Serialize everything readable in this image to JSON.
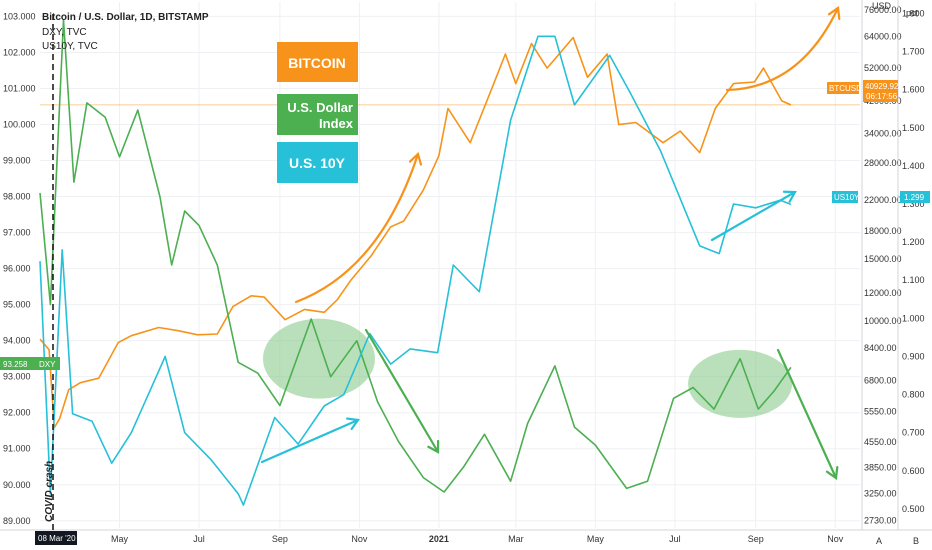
{
  "header": {
    "line1": "Bitcoin / U.S. Dollar, 1D, BITSTAMP",
    "line2": "DXY, TVC",
    "line3": "US10Y, TVC"
  },
  "colors": {
    "btc": "#f7931a",
    "dxy": "#4caf50",
    "us10y": "#26c0d8",
    "ellipse": "#81c784",
    "grid": "#eef0f3"
  },
  "legend": {
    "bitcoin": "BITCOIN",
    "dxy_line1": "U.S. Dollar",
    "dxy_line2": "Index",
    "us10y": "U.S. 10Y"
  },
  "annotation": {
    "covid": "COVID crash"
  },
  "scales": {
    "left_unit": "",
    "right_btc_unit": "USD",
    "right_pct_unit": "pct",
    "bottom_a": "A",
    "bottom_b": "B"
  },
  "tags": {
    "dxy_label": "DXY",
    "dxy_value": "93.258",
    "btc_label": "BTCUSD",
    "btc_value": "40929.92",
    "btc_countdown": "06:17:56",
    "us10y_label": "US10Y",
    "us10y_value": "1.299",
    "date_label": "08 Mar '20"
  },
  "chart_data": {
    "type": "line",
    "title": "Bitcoin / U.S. Dollar, 1D, BITSTAMP",
    "x_ticks": [
      "May",
      "Jul",
      "Sep",
      "Nov",
      "2021",
      "Mar",
      "May",
      "Jul",
      "Sep",
      "Nov"
    ],
    "x_range": [
      "2020-03-01",
      "2021-11-20"
    ],
    "left_axis": {
      "label": "DXY",
      "ticks": [
        "103.000",
        "102.000",
        "101.000",
        "100.000",
        "99.000",
        "98.000",
        "97.000",
        "96.000",
        "95.000",
        "94.000",
        "93.000",
        "92.000",
        "91.000",
        "90.000",
        "89.000"
      ],
      "range": [
        88.8,
        103.4
      ]
    },
    "right_axis_btc": {
      "label": "USD",
      "scale": "log",
      "ticks": [
        "76000.00",
        "64000.00",
        "52000.00",
        "42000.00",
        "34000.00",
        "28000.00",
        "22000.00",
        "18000.00",
        "15000.00",
        "12000.00",
        "10000.00",
        "8400.00",
        "6800.00",
        "5550.00",
        "4550.00",
        "3850.00",
        "3250.00",
        "2730.00"
      ],
      "range": [
        2600,
        80000
      ]
    },
    "right_axis_pct": {
      "label": "pct",
      "ticks": [
        "1.800",
        "1.700",
        "1.600",
        "1.500",
        "1.400",
        "1.300",
        "1.200",
        "1.100",
        "1.000",
        "0.900",
        "0.800",
        "0.700",
        "0.600",
        "0.500"
      ],
      "range": [
        0.45,
        1.83
      ]
    },
    "series": [
      {
        "name": "BTCUSD",
        "axis": "btc",
        "points": [
          [
            "2020-03-01",
            8900
          ],
          [
            "2020-03-08",
            8300
          ],
          [
            "2020-03-12",
            5000
          ],
          [
            "2020-03-16",
            5300
          ],
          [
            "2020-03-23",
            6400
          ],
          [
            "2020-04-01",
            6700
          ],
          [
            "2020-04-15",
            6900
          ],
          [
            "2020-04-30",
            8700
          ],
          [
            "2020-05-10",
            9100
          ],
          [
            "2020-05-31",
            9600
          ],
          [
            "2020-06-15",
            9400
          ],
          [
            "2020-06-30",
            9150
          ],
          [
            "2020-07-15",
            9200
          ],
          [
            "2020-07-27",
            11000
          ],
          [
            "2020-08-10",
            11800
          ],
          [
            "2020-08-20",
            11700
          ],
          [
            "2020-09-05",
            10100
          ],
          [
            "2020-09-20",
            10800
          ],
          [
            "2020-10-05",
            10600
          ],
          [
            "2020-10-15",
            11500
          ],
          [
            "2020-10-25",
            13000
          ],
          [
            "2020-11-10",
            15300
          ],
          [
            "2020-11-25",
            18500
          ],
          [
            "2020-12-05",
            19200
          ],
          [
            "2020-12-20",
            23500
          ],
          [
            "2021-01-01",
            29400
          ],
          [
            "2021-01-08",
            40000
          ],
          [
            "2021-01-25",
            32000
          ],
          [
            "2021-02-10",
            45000
          ],
          [
            "2021-02-21",
            57000
          ],
          [
            "2021-03-01",
            47000
          ],
          [
            "2021-03-13",
            61000
          ],
          [
            "2021-03-25",
            52000
          ],
          [
            "2021-04-14",
            63500
          ],
          [
            "2021-04-25",
            49000
          ],
          [
            "2021-05-10",
            57000
          ],
          [
            "2021-05-19",
            36000
          ],
          [
            "2021-06-01",
            36500
          ],
          [
            "2021-06-22",
            32000
          ],
          [
            "2021-07-05",
            34500
          ],
          [
            "2021-07-20",
            30000
          ],
          [
            "2021-08-01",
            40000
          ],
          [
            "2021-08-15",
            47000
          ],
          [
            "2021-08-31",
            47500
          ],
          [
            "2021-09-07",
            52000
          ],
          [
            "2021-09-21",
            42000
          ],
          [
            "2021-09-28",
            40929.92
          ]
        ]
      },
      {
        "name": "DXY",
        "axis": "left",
        "points": [
          [
            "2020-03-01",
            98.1
          ],
          [
            "2020-03-09",
            95.0
          ],
          [
            "2020-03-19",
            102.9
          ],
          [
            "2020-03-27",
            98.4
          ],
          [
            "2020-04-06",
            100.6
          ],
          [
            "2020-04-20",
            100.2
          ],
          [
            "2020-05-01",
            99.1
          ],
          [
            "2020-05-15",
            100.4
          ],
          [
            "2020-06-01",
            98.0
          ],
          [
            "2020-06-10",
            96.1
          ],
          [
            "2020-06-20",
            97.6
          ],
          [
            "2020-07-01",
            97.2
          ],
          [
            "2020-07-15",
            96.1
          ],
          [
            "2020-07-31",
            93.4
          ],
          [
            "2020-08-15",
            93.1
          ],
          [
            "2020-09-01",
            92.2
          ],
          [
            "2020-09-25",
            94.6
          ],
          [
            "2020-10-10",
            93.0
          ],
          [
            "2020-10-30",
            94.0
          ],
          [
            "2020-11-15",
            92.3
          ],
          [
            "2020-12-01",
            91.2
          ],
          [
            "2020-12-20",
            90.2
          ],
          [
            "2021-01-05",
            89.8
          ],
          [
            "2021-01-20",
            90.5
          ],
          [
            "2021-02-05",
            91.4
          ],
          [
            "2021-02-25",
            90.1
          ],
          [
            "2021-03-10",
            91.7
          ],
          [
            "2021-03-31",
            93.3
          ],
          [
            "2021-04-15",
            91.6
          ],
          [
            "2021-05-01",
            91.1
          ],
          [
            "2021-05-25",
            89.9
          ],
          [
            "2021-06-10",
            90.1
          ],
          [
            "2021-06-30",
            92.4
          ],
          [
            "2021-07-15",
            92.7
          ],
          [
            "2021-07-31",
            92.1
          ],
          [
            "2021-08-20",
            93.5
          ],
          [
            "2021-09-03",
            92.1
          ],
          [
            "2021-09-15",
            92.6
          ],
          [
            "2021-09-28",
            93.258
          ]
        ]
      },
      {
        "name": "US10Y",
        "axis": "pct",
        "points": [
          [
            "2020-03-01",
            1.15
          ],
          [
            "2020-03-09",
            0.54
          ],
          [
            "2020-03-18",
            1.18
          ],
          [
            "2020-03-26",
            0.75
          ],
          [
            "2020-04-10",
            0.73
          ],
          [
            "2020-04-25",
            0.62
          ],
          [
            "2020-05-10",
            0.7
          ],
          [
            "2020-06-05",
            0.9
          ],
          [
            "2020-06-20",
            0.7
          ],
          [
            "2020-07-10",
            0.63
          ],
          [
            "2020-07-31",
            0.54
          ],
          [
            "2020-08-04",
            0.51
          ],
          [
            "2020-08-28",
            0.74
          ],
          [
            "2020-09-15",
            0.67
          ],
          [
            "2020-10-05",
            0.77
          ],
          [
            "2020-10-20",
            0.8
          ],
          [
            "2020-11-09",
            0.96
          ],
          [
            "2020-11-25",
            0.88
          ],
          [
            "2020-12-10",
            0.92
          ],
          [
            "2020-12-31",
            0.91
          ],
          [
            "2021-01-12",
            1.14
          ],
          [
            "2021-02-01",
            1.07
          ],
          [
            "2021-02-25",
            1.52
          ],
          [
            "2021-03-18",
            1.74
          ],
          [
            "2021-03-31",
            1.74
          ],
          [
            "2021-04-15",
            1.56
          ],
          [
            "2021-05-12",
            1.69
          ],
          [
            "2021-05-28",
            1.59
          ],
          [
            "2021-06-20",
            1.44
          ],
          [
            "2021-07-08",
            1.29
          ],
          [
            "2021-07-20",
            1.19
          ],
          [
            "2021-08-04",
            1.17
          ],
          [
            "2021-08-15",
            1.3
          ],
          [
            "2021-09-01",
            1.29
          ],
          [
            "2021-09-20",
            1.31
          ],
          [
            "2021-09-28",
            1.299
          ]
        ]
      }
    ]
  }
}
